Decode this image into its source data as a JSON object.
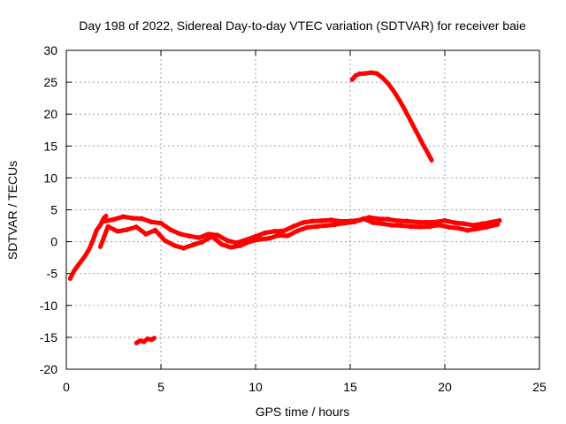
{
  "chart_data": {
    "type": "line",
    "title": "Day 198 of 2022, Sidereal Day-to-day VTEC variation (SDTVAR) for receiver baie",
    "xlabel": "GPS time / hours",
    "ylabel": "SDTVAR / TECUs",
    "xlim": [
      0,
      25
    ],
    "ylim": [
      -20,
      30
    ],
    "xticks": [
      0,
      5,
      10,
      15,
      20,
      25
    ],
    "yticks": [
      -20,
      -15,
      -10,
      -5,
      0,
      5,
      10,
      15,
      20,
      25,
      30
    ],
    "grid": true,
    "legend": "none",
    "series_color": "#ff0000",
    "series": [
      {
        "name": "track-low-start",
        "x": [
          0.2,
          0.4,
          0.6,
          0.8,
          1.0,
          1.2,
          1.4,
          1.6,
          1.8,
          2.0,
          2.1
        ],
        "y": [
          -5.8,
          -4.6,
          -3.8,
          -3.0,
          -2.2,
          -1.2,
          0.2,
          1.8,
          2.6,
          3.8,
          4.0
        ]
      },
      {
        "name": "track-main-upper",
        "x": [
          2.0,
          2.5,
          3.0,
          3.5,
          4.0,
          4.5,
          5.0,
          5.5,
          6.0,
          6.5,
          7.0,
          7.5,
          8.0,
          8.5,
          9.0,
          9.5,
          10.0,
          10.5,
          11.0,
          11.5,
          12.0,
          12.5,
          13.0,
          13.5,
          14.0,
          14.5,
          15.0,
          15.5,
          16.0,
          16.5,
          17.0,
          17.5,
          18.0,
          18.5,
          19.0,
          19.5,
          20.0,
          20.5,
          21.0,
          21.5,
          22.0,
          22.5,
          22.9
        ],
        "y": [
          3.2,
          3.5,
          3.9,
          3.7,
          3.6,
          3.1,
          2.9,
          1.9,
          1.2,
          0.9,
          0.6,
          1.2,
          1.0,
          0.2,
          -0.2,
          0.3,
          0.8,
          1.4,
          1.6,
          1.7,
          2.4,
          3.0,
          3.2,
          3.3,
          3.4,
          3.2,
          3.2,
          3.4,
          3.8,
          3.6,
          3.5,
          3.3,
          3.2,
          3.1,
          3.0,
          3.1,
          3.3,
          3.0,
          2.8,
          2.6,
          2.8,
          3.1,
          3.3
        ]
      },
      {
        "name": "track-main-lower",
        "x": [
          1.8,
          2.2,
          2.7,
          3.2,
          3.7,
          4.2,
          4.7,
          5.2,
          5.7,
          6.2,
          6.7,
          7.2,
          7.7,
          8.2,
          8.7,
          9.2,
          9.7,
          10.2,
          10.7,
          11.2,
          11.7,
          12.2,
          12.7,
          13.2,
          13.7,
          14.2,
          14.7,
          15.2,
          15.7,
          16.2,
          16.7,
          17.2,
          17.7,
          18.2,
          18.7,
          19.2,
          19.7,
          20.2,
          20.7,
          21.2,
          21.7,
          22.2,
          22.8
        ],
        "y": [
          -0.8,
          2.4,
          1.6,
          1.9,
          2.3,
          1.2,
          1.8,
          0.2,
          -0.6,
          -1.0,
          -0.5,
          0.0,
          0.8,
          -0.4,
          -0.9,
          -0.6,
          0.0,
          0.4,
          0.5,
          1.0,
          0.9,
          1.7,
          2.2,
          2.4,
          2.5,
          2.7,
          2.9,
          3.1,
          3.6,
          3.0,
          2.8,
          2.6,
          2.5,
          2.4,
          2.3,
          2.4,
          2.6,
          2.3,
          2.1,
          1.8,
          2.0,
          2.3,
          2.7
        ]
      },
      {
        "name": "track-high-arc",
        "x": [
          15.1,
          15.3,
          15.5,
          15.8,
          16.1,
          16.4,
          16.7,
          17.0,
          17.3,
          17.6,
          17.9,
          18.2,
          18.5,
          18.8,
          19.1,
          19.3
        ],
        "y": [
          25.4,
          26.1,
          26.3,
          26.4,
          26.5,
          26.4,
          25.7,
          24.8,
          23.6,
          22.2,
          20.6,
          18.9,
          17.2,
          15.5,
          13.9,
          12.8
        ]
      },
      {
        "name": "track-low-segment",
        "x": [
          3.7,
          3.9,
          4.1,
          4.3,
          4.5,
          4.65
        ],
        "y": [
          -15.9,
          -15.5,
          -15.7,
          -15.2,
          -15.4,
          -15.1
        ]
      }
    ]
  }
}
